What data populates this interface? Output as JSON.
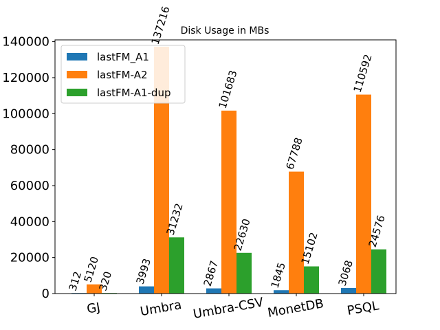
{
  "chart_data": {
    "type": "bar",
    "title": "Disk Usage in MBs",
    "xlabel": "",
    "ylabel": "",
    "categories": [
      "GJ",
      "Umbra",
      "Umbra-CSV",
      "MonetDB",
      "PSQL"
    ],
    "series": [
      {
        "name": "lastFM_A1",
        "color": "#1f77b4",
        "values": [
          312,
          3993,
          2867,
          1845,
          3068
        ]
      },
      {
        "name": "lastFM-A2",
        "color": "#ff7f0e",
        "values": [
          5120,
          137216,
          101683,
          67788,
          110592
        ]
      },
      {
        "name": "lastFM-A1-dup",
        "color": "#2ca02c",
        "values": [
          320,
          31232,
          22630,
          15102,
          24576
        ]
      }
    ],
    "ylim": [
      0,
      141000
    ],
    "yticks": [
      0,
      20000,
      40000,
      60000,
      80000,
      100000,
      120000,
      140000
    ],
    "legend": "top-left",
    "grid": false
  }
}
